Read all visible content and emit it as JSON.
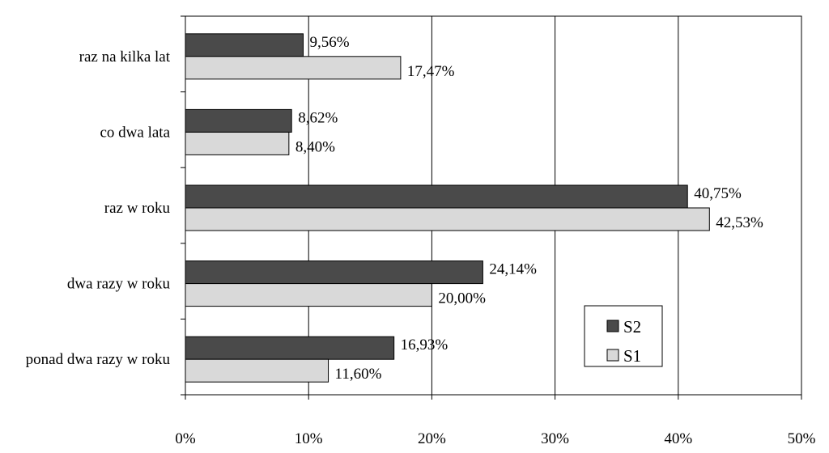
{
  "colors": {
    "S2": "#4a4a4a",
    "S1": "#d9d9d9",
    "grid": "#000000",
    "background": "#ffffff"
  },
  "chart_data": {
    "type": "bar",
    "orientation": "horizontal",
    "categories": [
      "raz na kilka lat",
      "co dwa lata",
      "raz w roku",
      "dwa razy w roku",
      "ponad dwa razy w roku"
    ],
    "series": [
      {
        "name": "S2",
        "values": [
          9.56,
          8.62,
          40.75,
          24.14,
          16.93
        ],
        "labels": [
          "9,56%",
          "8,62%",
          "40,75%",
          "24,14%",
          "16,93%"
        ]
      },
      {
        "name": "S1",
        "values": [
          17.47,
          8.4,
          42.53,
          20.0,
          11.6
        ],
        "labels": [
          "17,47%",
          "8,40%",
          "42,53%",
          "20,00%",
          "11,60%"
        ]
      }
    ],
    "xlim": [
      0,
      50
    ],
    "x_ticks": [
      "0%",
      "10%",
      "20%",
      "30%",
      "40%",
      "50%"
    ],
    "grid": true,
    "legend_position": "bottom-right"
  }
}
